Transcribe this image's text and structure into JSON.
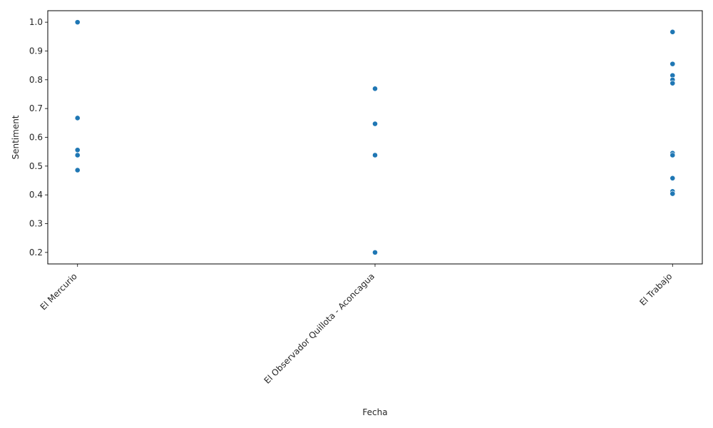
{
  "chart_data": {
    "type": "scatter",
    "xlabel": "Fecha",
    "ylabel": "Sentiment",
    "categories": [
      "El Mercurio",
      "El Observador Quillota - Aconcagua",
      "El Trabajo"
    ],
    "ylim": [
      0.16,
      1.04
    ],
    "y_ticks": [
      "0.2",
      "0.3",
      "0.4",
      "0.5",
      "0.6",
      "0.7",
      "0.8",
      "0.9",
      "1.0"
    ],
    "grid": false,
    "color": "#1f77b4",
    "points": [
      {
        "x": "El Mercurio",
        "y": 1.0
      },
      {
        "x": "El Mercurio",
        "y": 0.667
      },
      {
        "x": "El Mercurio",
        "y": 0.556
      },
      {
        "x": "El Mercurio",
        "y": 0.538
      },
      {
        "x": "El Mercurio",
        "y": 0.486
      },
      {
        "x": "El Observador Quillota - Aconcagua",
        "y": 0.769
      },
      {
        "x": "El Observador Quillota - Aconcagua",
        "y": 0.647
      },
      {
        "x": "El Observador Quillota - Aconcagua",
        "y": 0.538
      },
      {
        "x": "El Observador Quillota - Aconcagua",
        "y": 0.2
      },
      {
        "x": "El Trabajo",
        "y": 0.966
      },
      {
        "x": "El Trabajo",
        "y": 0.855
      },
      {
        "x": "El Trabajo",
        "y": 0.815
      },
      {
        "x": "El Trabajo",
        "y": 0.8
      },
      {
        "x": "El Trabajo",
        "y": 0.788
      },
      {
        "x": "El Trabajo",
        "y": 0.545
      },
      {
        "x": "El Trabajo",
        "y": 0.538
      },
      {
        "x": "El Trabajo",
        "y": 0.458
      },
      {
        "x": "El Trabajo",
        "y": 0.412
      },
      {
        "x": "El Trabajo",
        "y": 0.404
      }
    ]
  }
}
